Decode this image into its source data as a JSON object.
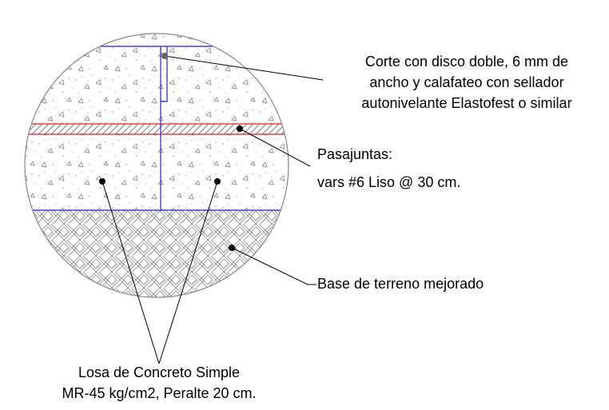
{
  "callouts": [
    {
      "lines": [
        "Corte con disco doble, 6 mm de",
        "ancho y calafateo con sellador",
        "autonivelante Elastofest o similar"
      ]
    },
    {
      "lines": [
        "Pasajuntas:",
        "vars #6 Liso @ 30 cm."
      ]
    },
    {
      "lines": [
        "Base de terreno mejorado"
      ]
    },
    {
      "lines": [
        "Losa de Concreto Simple",
        "MR-45 kg/cm2, Peralte 20 cm."
      ]
    }
  ]
}
